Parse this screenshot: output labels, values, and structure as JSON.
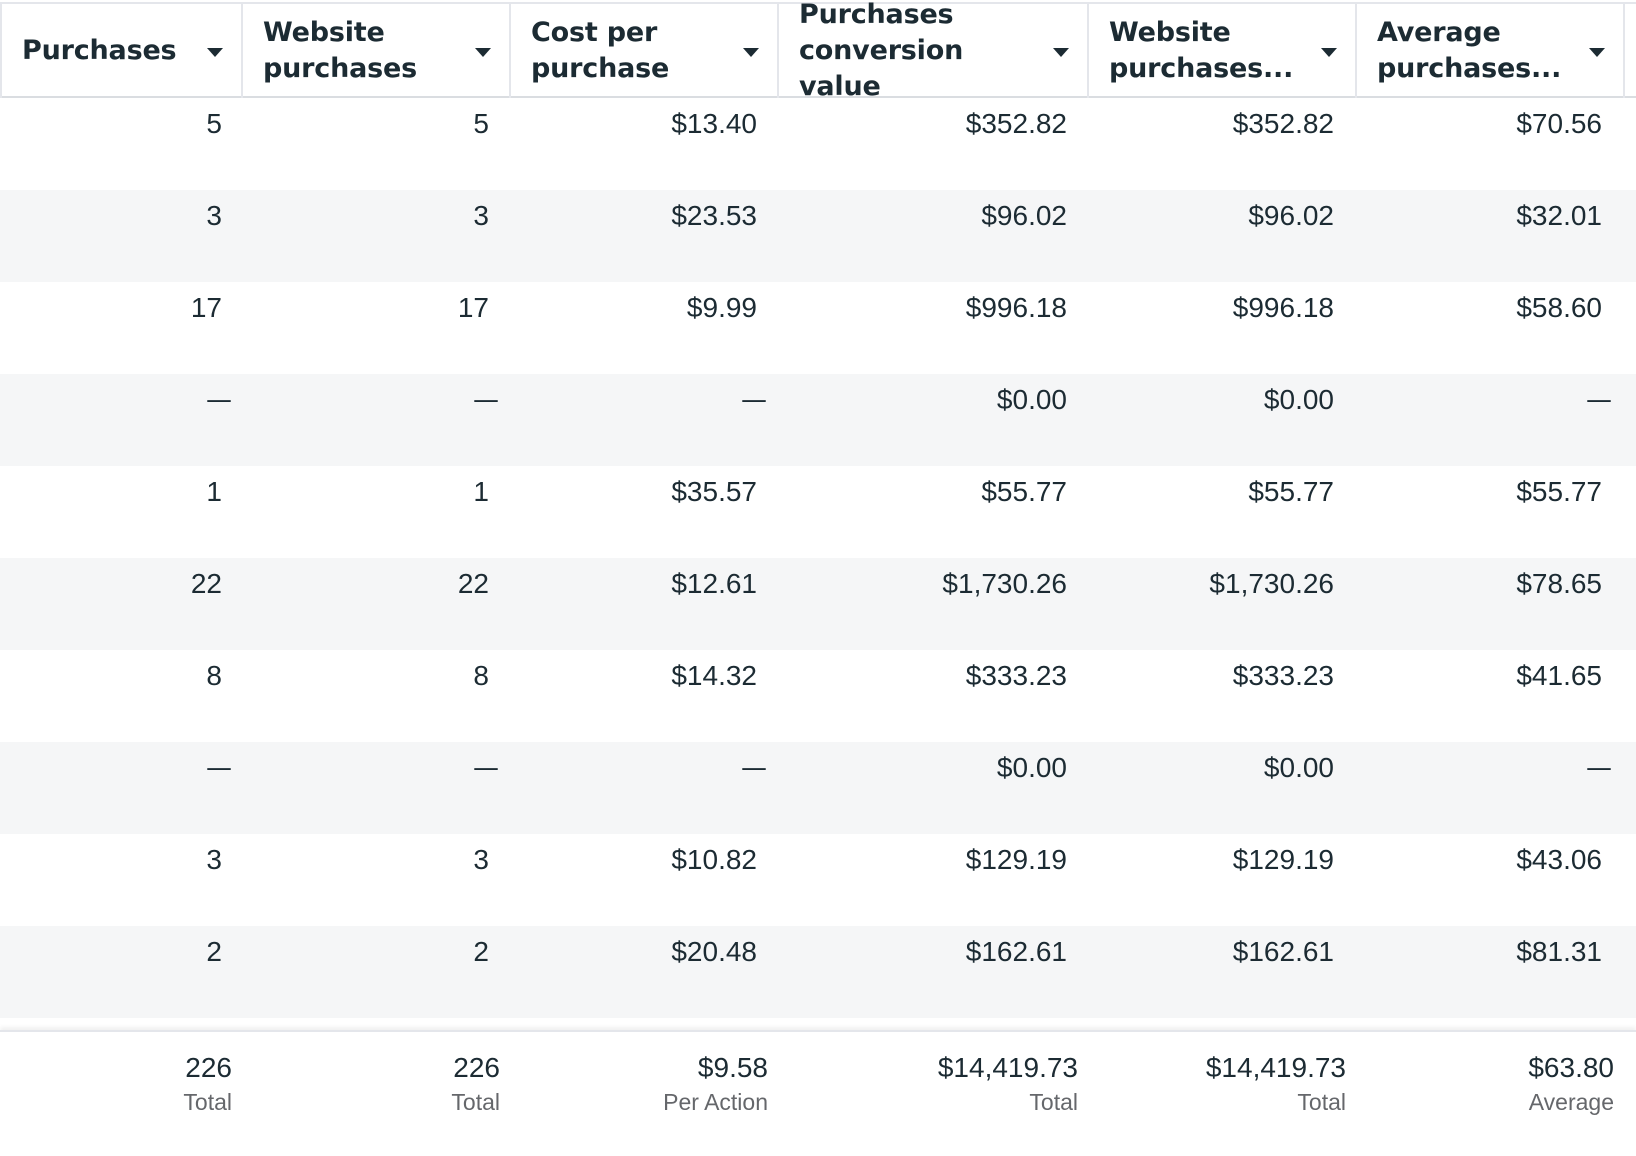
{
  "columns": [
    {
      "label": "Purchases"
    },
    {
      "label": "Website\npurchases"
    },
    {
      "label": "Cost per\npurchase"
    },
    {
      "label": "Purchases\nconversion value"
    },
    {
      "label": "Website\npurchases..."
    },
    {
      "label": "Average\npurchases..."
    }
  ],
  "rows": [
    [
      "5",
      "5",
      "$13.40",
      "$352.82",
      "$352.82",
      "$70.56"
    ],
    [
      "3",
      "3",
      "$23.53",
      "$96.02",
      "$96.02",
      "$32.01"
    ],
    [
      "17",
      "17",
      "$9.99",
      "$996.18",
      "$996.18",
      "$58.60"
    ],
    [
      "—",
      "—",
      "—",
      "$0.00",
      "$0.00",
      "—"
    ],
    [
      "1",
      "1",
      "$35.57",
      "$55.77",
      "$55.77",
      "$55.77"
    ],
    [
      "22",
      "22",
      "$12.61",
      "$1,730.26",
      "$1,730.26",
      "$78.65"
    ],
    [
      "8",
      "8",
      "$14.32",
      "$333.23",
      "$333.23",
      "$41.65"
    ],
    [
      "—",
      "—",
      "—",
      "$0.00",
      "$0.00",
      "—"
    ],
    [
      "3",
      "3",
      "$10.82",
      "$129.19",
      "$129.19",
      "$43.06"
    ],
    [
      "2",
      "2",
      "$20.48",
      "$162.61",
      "$162.61",
      "$81.31"
    ]
  ],
  "totals": [
    {
      "value": "226",
      "label": "Total"
    },
    {
      "value": "226",
      "label": "Total"
    },
    {
      "value": "$9.58",
      "label": "Per Action"
    },
    {
      "value": "$14,419.73",
      "label": "Total"
    },
    {
      "value": "$14,419.73",
      "label": "Total"
    },
    {
      "value": "$63.80",
      "label": "Average"
    }
  ],
  "colors": {
    "text": "#1c2b33",
    "muted": "#65676b",
    "row_alt": "#f5f6f7",
    "border": "#e4e6eb"
  }
}
